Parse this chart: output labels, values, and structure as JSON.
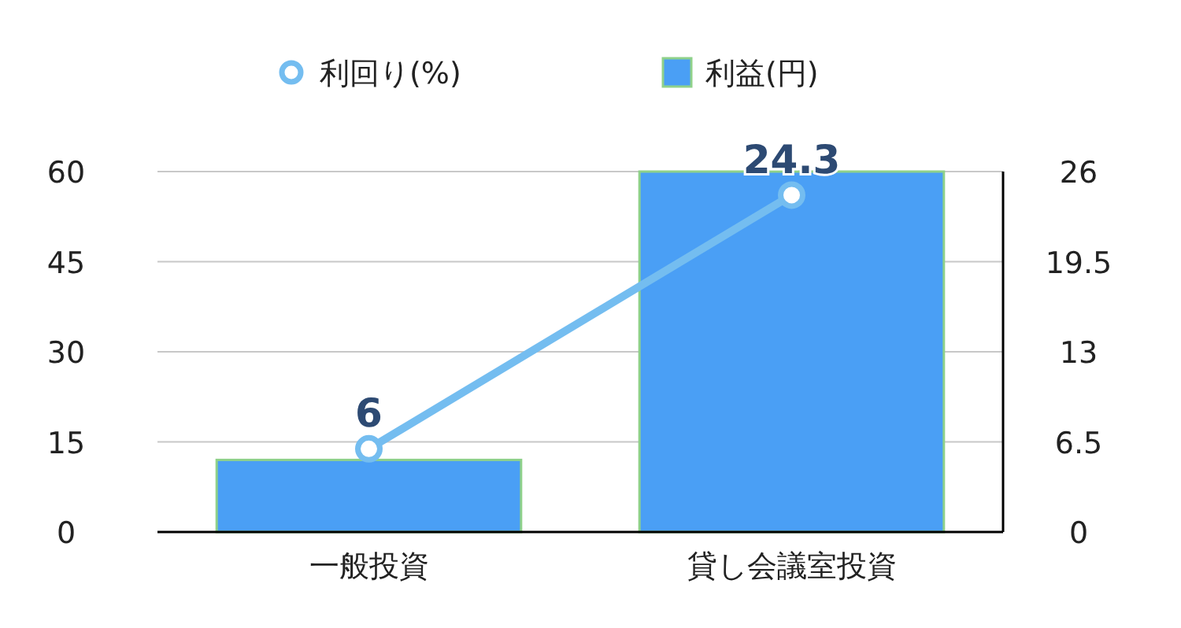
{
  "chart_data": {
    "type": "bar",
    "categories": [
      "一般投資",
      "貸し会議室投資"
    ],
    "series": [
      {
        "name": "利回り(%)",
        "type": "line",
        "axis": "y2",
        "color": "#74bdf0",
        "values": [
          6,
          24.3
        ],
        "value_labels": [
          "6",
          "24.3"
        ]
      },
      {
        "name": "利益(円)",
        "color": "#4a9ff5",
        "values": [
          12,
          60
        ]
      }
    ],
    "ylim": [
      0,
      60
    ],
    "yticks": [
      0,
      15,
      30,
      45,
      60
    ],
    "y2lim": [
      0,
      26
    ],
    "y2ticks": [
      0,
      6.5,
      13,
      19.5,
      26
    ],
    "grid": "y",
    "legend": "top",
    "marker": "circle"
  }
}
